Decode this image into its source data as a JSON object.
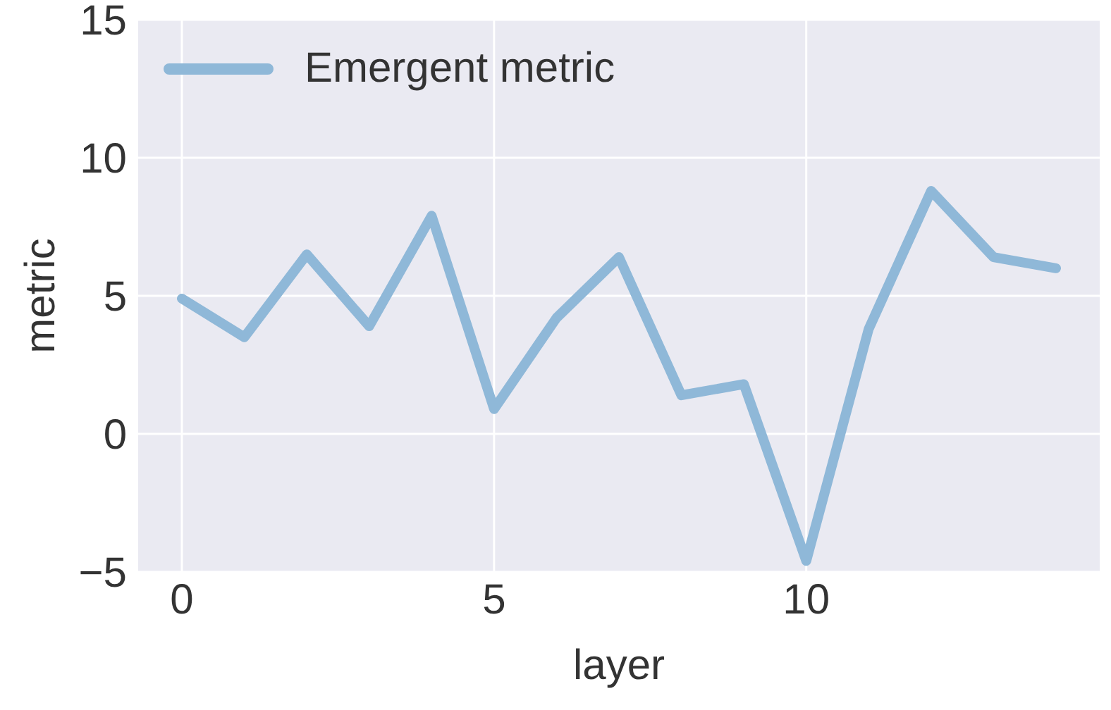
{
  "chart_data": {
    "type": "line",
    "xlabel": "layer",
    "ylabel": "metric",
    "x": [
      0,
      1,
      2,
      3,
      4,
      5,
      6,
      7,
      8,
      9,
      10,
      11,
      12,
      13,
      14
    ],
    "series": [
      {
        "name": "Emergent metric",
        "color": "#8fb8d8",
        "values": [
          4.9,
          3.5,
          6.5,
          3.9,
          7.9,
          0.9,
          4.2,
          6.4,
          1.4,
          1.8,
          -4.6,
          3.8,
          8.8,
          6.4,
          6.0
        ]
      }
    ],
    "xlim": [
      -0.7,
      14.7
    ],
    "xticks": [
      0,
      5,
      10
    ],
    "ylim": [
      -5,
      15
    ],
    "yticks": [
      -5,
      0,
      5,
      10,
      15
    ],
    "grid": true,
    "legend": "top left",
    "marker": "none",
    "line_style": "solid"
  }
}
